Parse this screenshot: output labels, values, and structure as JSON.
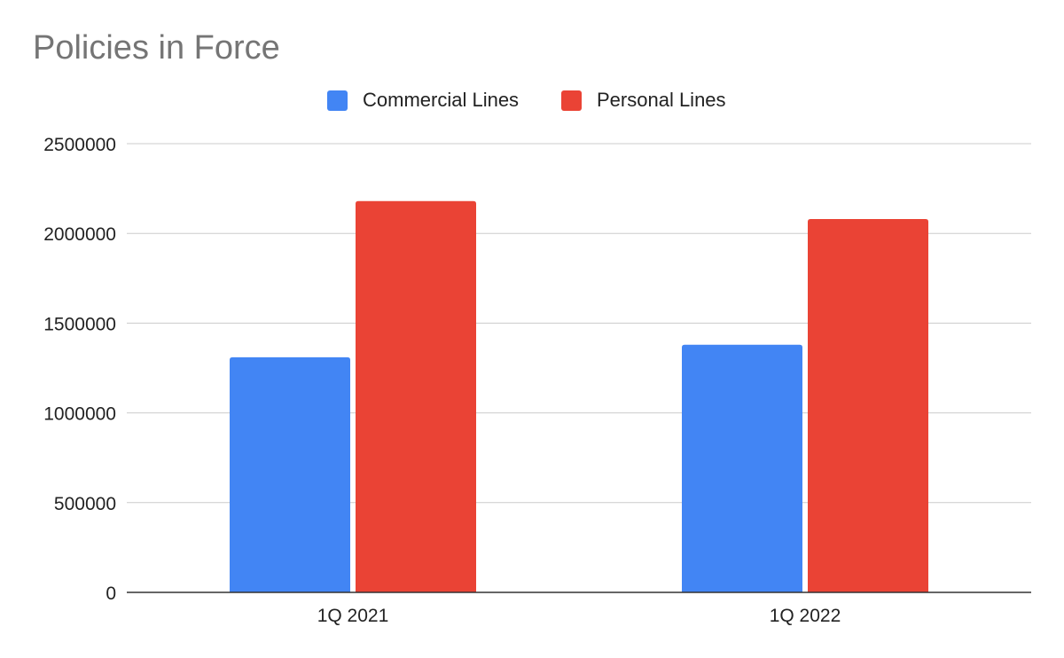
{
  "chart_data": {
    "type": "bar",
    "title": "Policies in Force",
    "categories": [
      "1Q 2021",
      "1Q 2022"
    ],
    "series": [
      {
        "name": "Commercial Lines",
        "color": "#4285f4",
        "values": [
          1310000,
          1380000
        ]
      },
      {
        "name": "Personal Lines",
        "color": "#ea4335",
        "values": [
          2180000,
          2080000
        ]
      }
    ],
    "y_ticks": [
      "0",
      "500000",
      "1000000",
      "1500000",
      "2000000",
      "2500000"
    ],
    "ylim": [
      0,
      2500000
    ],
    "xlabel": "",
    "ylabel": "",
    "grid": true,
    "legend_position": "top-center"
  }
}
